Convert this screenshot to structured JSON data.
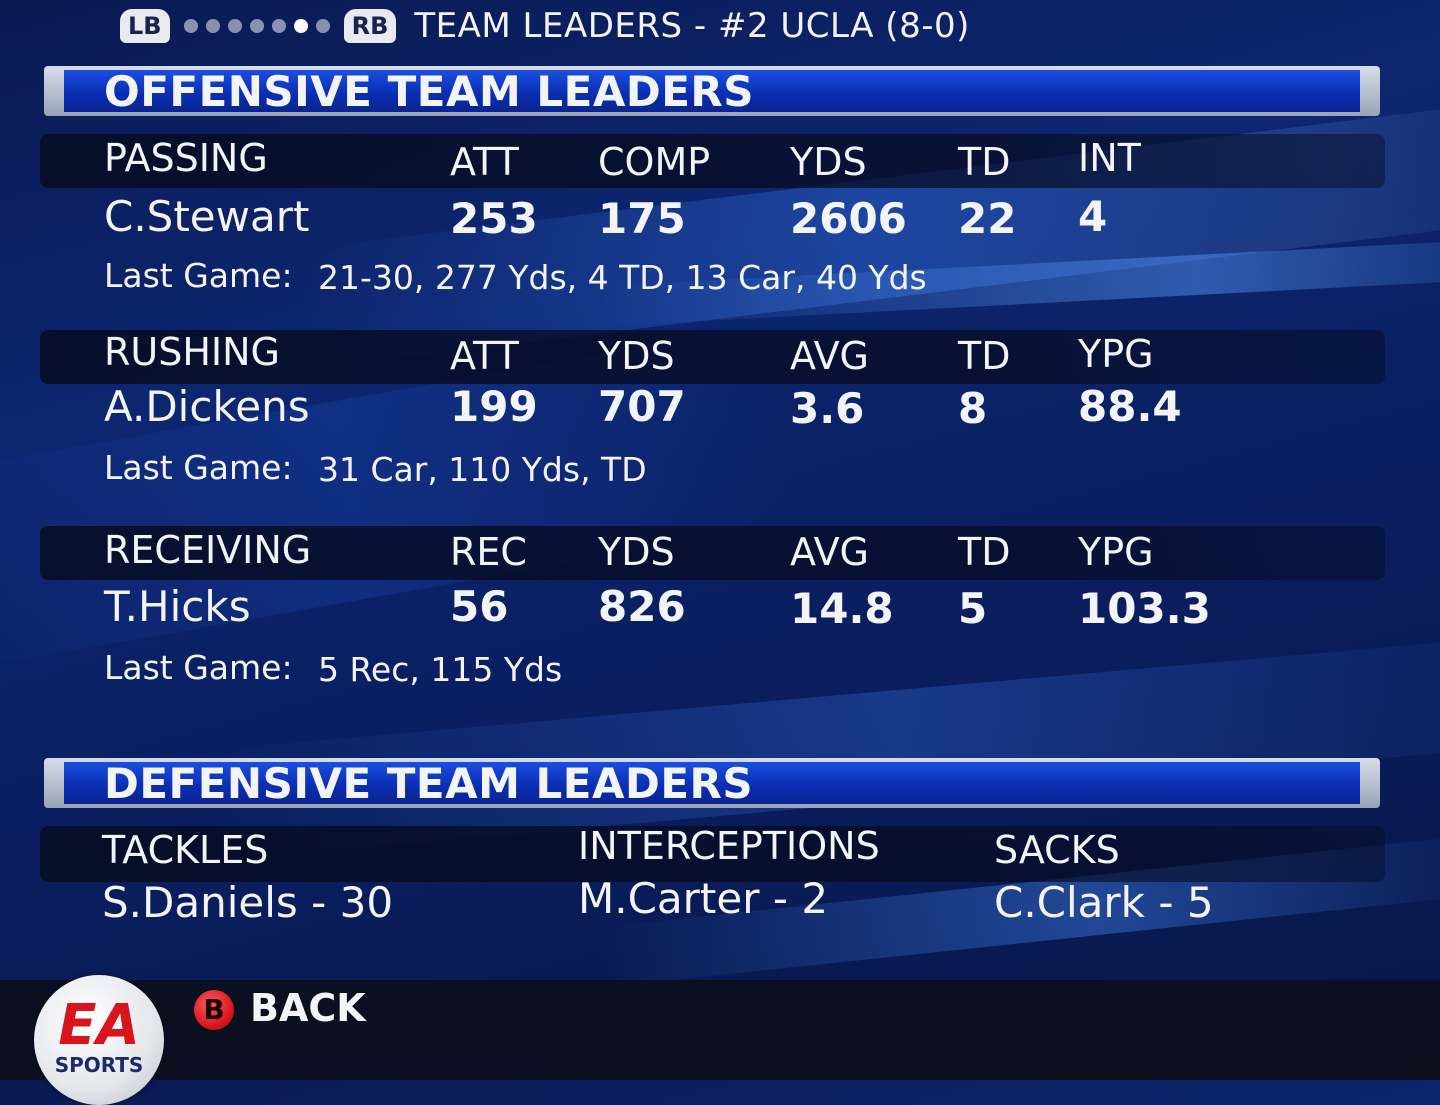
{
  "topbar": {
    "lb": "LB",
    "rb": "RB",
    "title": "TEAM LEADERS - #2 UCLA (8-0)",
    "page_count": 7,
    "active_page": 6
  },
  "offense": {
    "title": "OFFENSIVE TEAM LEADERS",
    "passing": {
      "label": "PASSING",
      "headers": [
        "ATT",
        "COMP",
        "YDS",
        "TD",
        "INT"
      ],
      "player": "C.Stewart",
      "values": [
        "253",
        "175",
        "2606",
        "22",
        "4"
      ],
      "last_game_label": "Last Game:",
      "last_game": "21-30, 277 Yds, 4 TD,  13 Car, 40 Yds"
    },
    "rushing": {
      "label": "RUSHING",
      "headers": [
        "ATT",
        "YDS",
        "AVG",
        "TD",
        "YPG"
      ],
      "player": "A.Dickens",
      "values": [
        "199",
        "707",
        "3.6",
        "8",
        "88.4"
      ],
      "last_game_label": "Last Game:",
      "last_game": "31 Car, 110 Yds,  TD"
    },
    "receiving": {
      "label": "RECEIVING",
      "headers": [
        "REC",
        "YDS",
        "AVG",
        "TD",
        "YPG"
      ],
      "player": "T.Hicks",
      "values": [
        "56",
        "826",
        "14.8",
        "5",
        "103.3"
      ],
      "last_game_label": "Last Game:",
      "last_game": "5 Rec, 115 Yds"
    }
  },
  "defense": {
    "title": "DEFENSIVE TEAM LEADERS",
    "tackles": {
      "label": "TACKLES",
      "value": "S.Daniels - 30"
    },
    "interceptions": {
      "label": "INTERCEPTIONS",
      "value": "M.Carter - 2"
    },
    "sacks": {
      "label": "SACKS",
      "value": "C.Clark - 5"
    }
  },
  "footer": {
    "ea_logo": "EA",
    "sports": "SPORTS",
    "b_button": "B",
    "back_label": "BACK"
  }
}
